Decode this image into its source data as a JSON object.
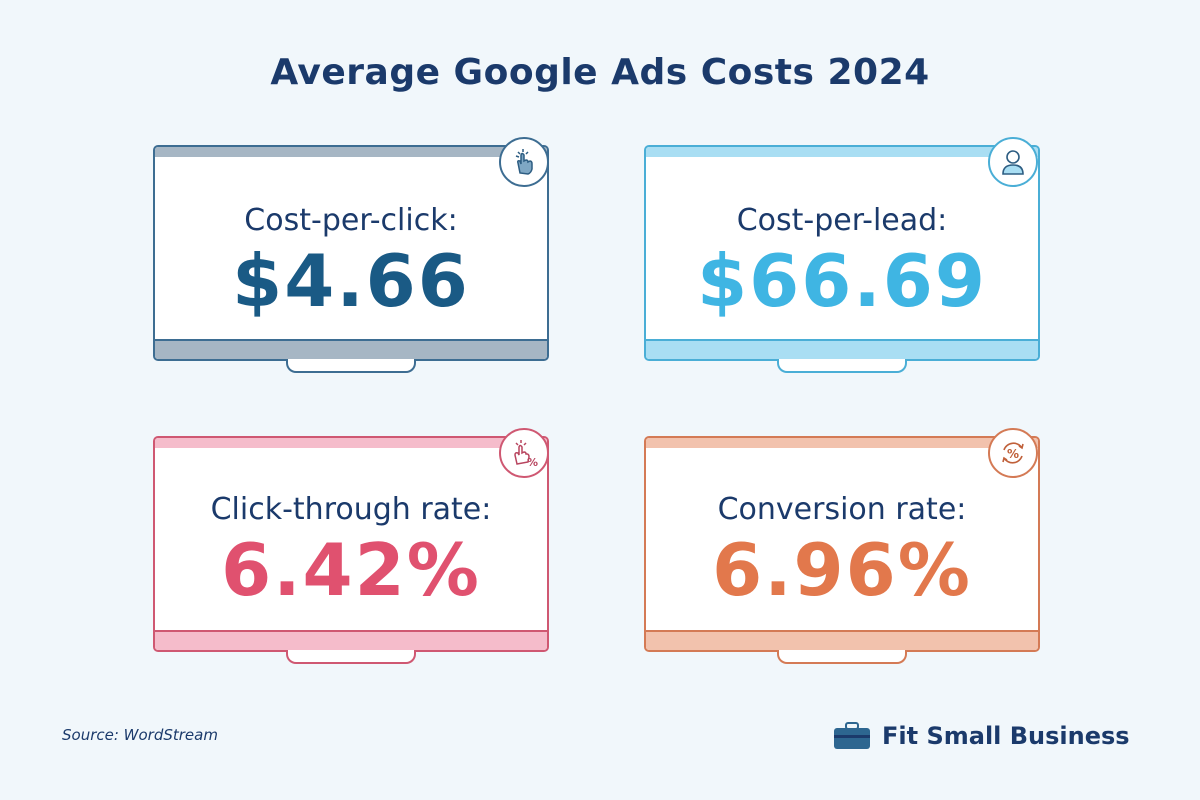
{
  "title": "Average Google Ads Costs 2024",
  "cards": [
    {
      "label": "Cost-per-click:",
      "value": "$4.66",
      "icon": "click-hand-icon",
      "color": "#1a5a85",
      "accent": "#a6b6c4",
      "border": "#3d6d92"
    },
    {
      "label": "Cost-per-lead:",
      "value": "$66.69",
      "icon": "user-icon",
      "color": "#3fb5e3",
      "accent": "#a9def3",
      "border": "#4aaed6"
    },
    {
      "label": "Click-through rate:",
      "value": "6.42%",
      "icon": "click-percent-icon",
      "color": "#e0516f",
      "accent": "#f5bccb",
      "border": "#cf5872"
    },
    {
      "label": "Conversion rate:",
      "value": "6.96%",
      "icon": "percent-cycle-icon",
      "color": "#e2784c",
      "accent": "#f2c2ad",
      "border": "#d47a55"
    }
  ],
  "source": "Source:  WordStream",
  "brand": "Fit Small Business"
}
